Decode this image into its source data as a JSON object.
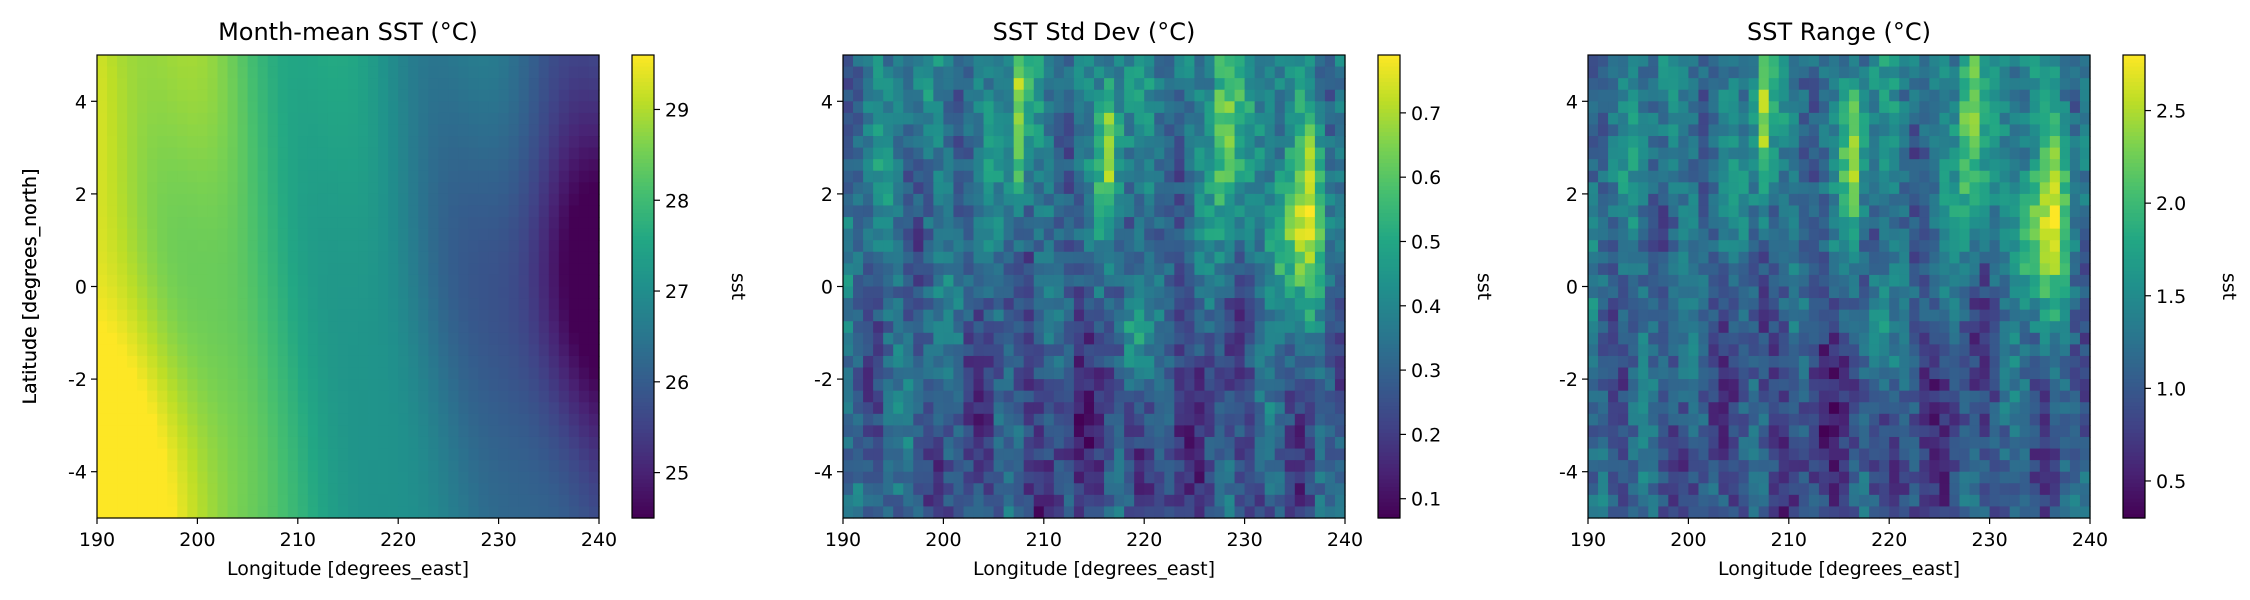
{
  "chart_data": [
    {
      "type": "heatmap",
      "title": "Month-mean SST (°C)",
      "xlabel": "Longitude [degrees_east]",
      "ylabel": "Latitude [degrees_north]",
      "xlim": [
        190,
        240
      ],
      "ylim": [
        -5,
        5
      ],
      "xticks": [
        190,
        200,
        210,
        220,
        230,
        240
      ],
      "yticks": [
        -4,
        -2,
        0,
        2,
        4
      ],
      "colorbar": {
        "label": "sst",
        "range": [
          24.5,
          29.6
        ],
        "ticks": [
          25,
          26,
          27,
          28,
          29
        ],
        "colormap": "viridis"
      },
      "grid": {
        "nx": 50,
        "ny": 40,
        "pattern": "mean"
      }
    },
    {
      "type": "heatmap",
      "title": "SST Std Dev (°C)",
      "xlabel": "Longitude [degrees_east]",
      "ylabel": "Latitude [degrees_north]",
      "xlim": [
        190,
        240
      ],
      "ylim": [
        -5,
        5
      ],
      "xticks": [
        190,
        200,
        210,
        220,
        230,
        240
      ],
      "yticks": [
        -4,
        -2,
        0,
        2,
        4
      ],
      "colorbar": {
        "label": "sst",
        "range": [
          0.07,
          0.79
        ],
        "ticks": [
          0.1,
          0.2,
          0.3,
          0.4,
          0.5,
          0.6,
          0.7
        ],
        "colormap": "viridis"
      },
      "grid": {
        "nx": 50,
        "ny": 40,
        "pattern": "streaks",
        "seed": 7
      }
    },
    {
      "type": "heatmap",
      "title": "SST Range (°C)",
      "xlabel": "Longitude [degrees_east]",
      "ylabel": "Latitude [degrees_north]",
      "xlim": [
        190,
        240
      ],
      "ylim": [
        -5,
        5
      ],
      "xticks": [
        190,
        200,
        210,
        220,
        230,
        240
      ],
      "yticks": [
        -4,
        -2,
        0,
        2,
        4
      ],
      "colorbar": {
        "label": "sst",
        "range": [
          0.3,
          2.8
        ],
        "ticks": [
          0.5,
          1.0,
          1.5,
          2.0,
          2.5
        ],
        "colormap": "viridis"
      },
      "grid": {
        "nx": 50,
        "ny": 40,
        "pattern": "streaks",
        "seed": 11
      }
    }
  ]
}
